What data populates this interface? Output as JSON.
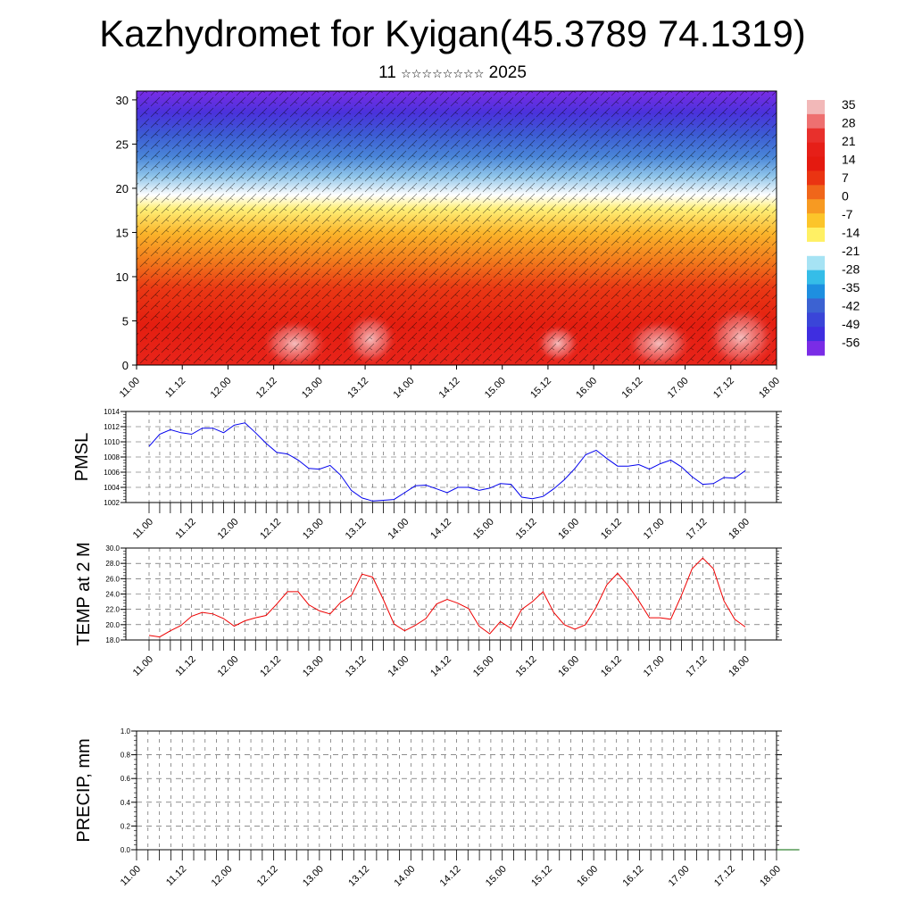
{
  "page": {
    "title": "Kazhydromet for Kyigan(45.3789 74.1319)",
    "subtitle_day": "11",
    "subtitle_month_glyphs": "☆☆☆☆☆☆☆☆",
    "subtitle_year": "2025"
  },
  "time_labels": [
    "11.00",
    "11.12",
    "12.00",
    "12.12",
    "13.00",
    "13.12",
    "14.00",
    "14.12",
    "15.00",
    "15.12",
    "16.00",
    "16.12",
    "17.00",
    "17.12",
    "18.00"
  ],
  "colorbar": {
    "labels": [
      "35",
      "28",
      "21",
      "14",
      "7",
      "0",
      "-7",
      "-14",
      "-21",
      "-28",
      "-35",
      "-42",
      "-49",
      "-56"
    ],
    "colors": [
      "#f2b8b8",
      "#ee7070",
      "#e8302c",
      "#e61f18",
      "#e41a10",
      "#ea3412",
      "#f0661a",
      "#f79a22",
      "#fcc52a",
      "#fff064",
      "#ffffff",
      "#a6e3f4",
      "#35bde8",
      "#1e8fe0",
      "#3c62d2",
      "#3a45d8",
      "#3f2ee0",
      "#7a2ce6"
    ]
  },
  "chart_data": [
    {
      "type": "heatmap",
      "title": "",
      "ylabel": "",
      "yticks": [
        0,
        5,
        10,
        15,
        20,
        25,
        30
      ],
      "ylim": [
        0,
        31
      ],
      "note_values": "temperature by level vs time with wind barbs"
    },
    {
      "type": "line",
      "ylabel": "PMSL",
      "ylim": [
        1002,
        1014
      ],
      "yticks": [
        "1002",
        "1004",
        "1006",
        "1008",
        "1010",
        "1012",
        "1014"
      ],
      "color": "#0000ee",
      "series": [
        {
          "values": [
            1009.4,
            1011.0,
            1011.6,
            1011.2,
            1011.0,
            1011.8,
            1011.8,
            1011.2,
            1012.2,
            1012.5,
            1011.2,
            1009.8,
            1008.6,
            1008.4,
            1007.6,
            1006.5,
            1006.4,
            1006.9,
            1005.6,
            1003.6,
            1002.6,
            1002.2,
            1002.3,
            1002.4,
            1003.3,
            1004.2,
            1004.3,
            1003.8,
            1003.3,
            1004.0,
            1004.0,
            1003.6,
            1003.9,
            1004.5,
            1004.4,
            1002.7,
            1002.5,
            1002.8,
            1003.8,
            1005.0,
            1006.5,
            1008.3,
            1008.9,
            1007.8,
            1006.8,
            1006.8,
            1007.0,
            1006.4,
            1007.1,
            1007.6,
            1006.7,
            1005.4,
            1004.4,
            1004.5,
            1005.3,
            1005.2,
            1006.2
          ]
        }
      ]
    },
    {
      "type": "line",
      "ylabel": "TEMP at 2 M",
      "ylim": [
        18.0,
        30.0
      ],
      "yticks": [
        "18.0",
        "20.0",
        "22.0",
        "24.0",
        "26.0",
        "28.0",
        "30.0"
      ],
      "color": "#ee0000",
      "series": [
        {
          "values": [
            18.6,
            18.4,
            19.2,
            19.9,
            21.1,
            21.6,
            21.4,
            20.8,
            19.8,
            20.5,
            20.9,
            21.2,
            22.7,
            24.3,
            24.3,
            22.6,
            21.8,
            21.4,
            22.9,
            23.8,
            26.6,
            26.2,
            23.3,
            20.1,
            19.2,
            19.9,
            20.8,
            22.7,
            23.3,
            22.8,
            22.1,
            19.8,
            18.8,
            20.4,
            19.5,
            22.0,
            23.0,
            24.3,
            21.6,
            20.0,
            19.4,
            20.0,
            22.3,
            25.2,
            26.7,
            25.1,
            23.1,
            20.9,
            20.9,
            20.7,
            23.8,
            27.3,
            28.7,
            27.3,
            23.1,
            20.7,
            19.7
          ]
        }
      ]
    },
    {
      "type": "line",
      "ylabel": "PRECIP, mm",
      "ylim": [
        0.0,
        1.0
      ],
      "yticks": [
        "0.0",
        "0.2",
        "0.4",
        "0.6",
        "0.8",
        "1.0"
      ],
      "color": "#006400",
      "series": [
        {
          "values": [
            0,
            0,
            0,
            0,
            0,
            0,
            0,
            0,
            0,
            0,
            0,
            0,
            0,
            0,
            0,
            0,
            0,
            0,
            0,
            0,
            0,
            0,
            0,
            0,
            0,
            0,
            0,
            0,
            0,
            0,
            0,
            0,
            0,
            0,
            0,
            0,
            0,
            0,
            0,
            0,
            0,
            0,
            0,
            0,
            0,
            0,
            0,
            0,
            0,
            0,
            0,
            0,
            0,
            0,
            0,
            0,
            0,
            0,
            0
          ]
        }
      ]
    }
  ]
}
